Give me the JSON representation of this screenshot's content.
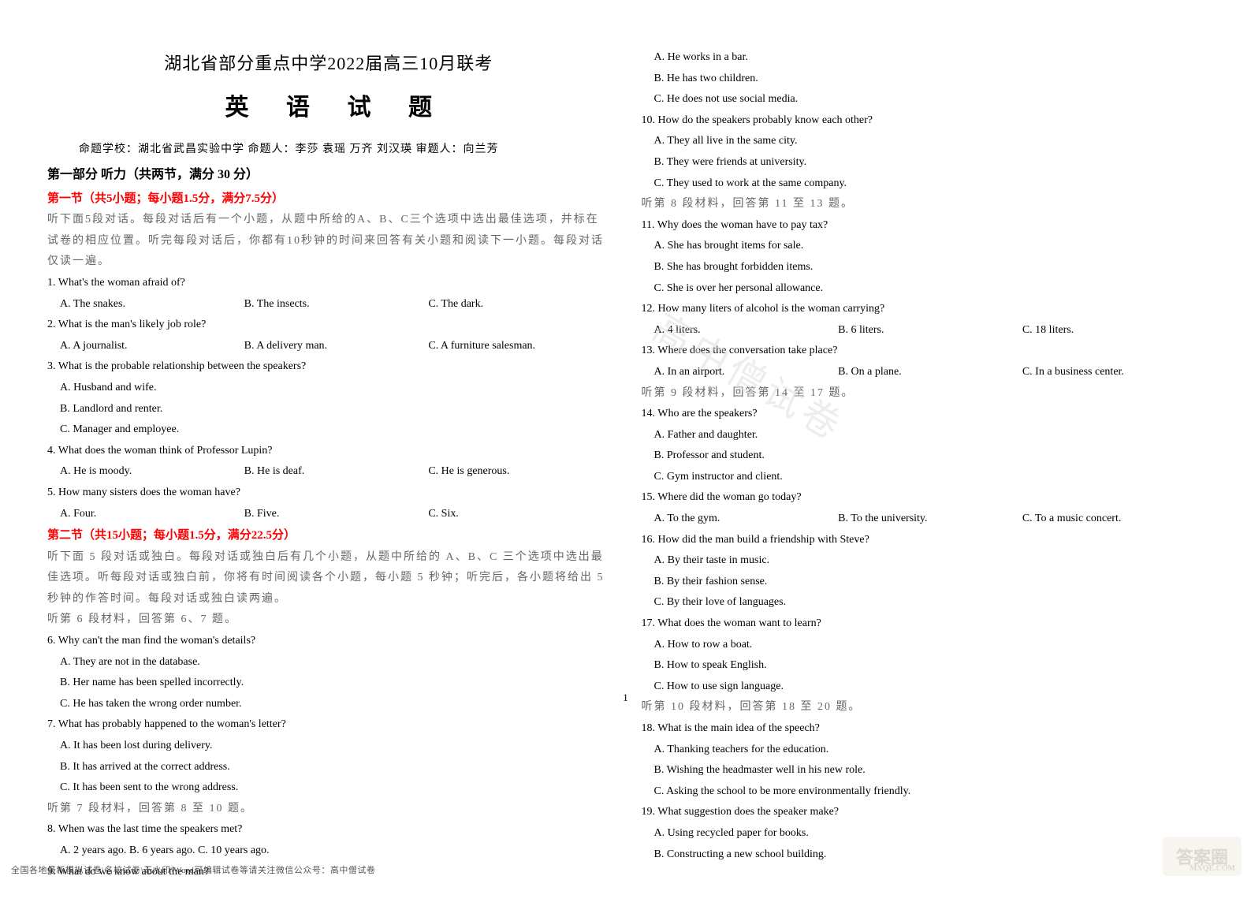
{
  "header": {
    "exam_title": "湖北省部分重点中学2022届高三10月联考",
    "subject_title": "英 语 试 题",
    "credits": "命题学校：湖北省武昌实验中学  命题人：李莎  袁瑶  万齐  刘汉瑛  审题人：向兰芳"
  },
  "part1": {
    "title": "第一部分  听力（共两节，满分 30 分）",
    "section1_title": "第一节（共5小题；每小题1.5分，满分7.5分）",
    "section1_instr": "听下面5段对话。每段对话后有一个小题，从题中所给的A、B、C三个选项中选出最佳选项，并标在试卷的相应位置。听完每段对话后，你都有10秒钟的时间来回答有关小题和阅读下一小题。每段对话仅读一遍。",
    "q1": "1. What's the woman afraid of?",
    "q1a": "A. The snakes.",
    "q1b": "B. The insects.",
    "q1c": "C. The dark.",
    "q2": "2. What is the man's likely job role?",
    "q2a": "A. A journalist.",
    "q2b": "B. A delivery man.",
    "q2c": "C. A furniture salesman.",
    "q3": "3. What is the probable relationship between the speakers?",
    "q3a": "A. Husband and wife.",
    "q3b": "B. Landlord and renter.",
    "q3c": "C. Manager and employee.",
    "q4": "4. What does the woman think of Professor Lupin?",
    "q4a": "A. He is moody.",
    "q4b": "B. He is deaf.",
    "q4c": "C. He is generous.",
    "q5": "5. How many sisters does the woman have?",
    "q5a": "A. Four.",
    "q5b": "B. Five.",
    "q5c": "C. Six.",
    "section2_title": "第二节（共15小题；每小题1.5分，满分22.5分）",
    "section2_instr": "听下面 5 段对话或独白。每段对话或独白后有几个小题，从题中所给的 A、B、C 三个选项中选出最佳选项。听每段对话或独白前，你将有时间阅读各个小题，每小题 5 秒钟；听完后，各小题将给出 5 秒钟的作答时间。每段对话或独白读两遍。",
    "mat6": "听第 6 段材料，回答第 6、7 题。",
    "q6": "6. Why can't the man find the woman's details?",
    "q6a": "A. They are not in the database.",
    "q6b": "B. Her name has been spelled incorrectly.",
    "q6c": "C. He has taken the wrong order number.",
    "q7": "7. What has probably happened to the woman's letter?",
    "q7a": "A. It has been lost during delivery.",
    "q7b": "B. It has arrived at the correct address.",
    "q7c": "C. It has been sent to the wrong address.",
    "mat7": "听第 7 段材料，回答第 8 至 10 题。",
    "q8": "8. When was the last time the speakers met?",
    "q8a": "A. 2 years ago.    B. 6 years ago.    C. 10 years ago.",
    "q9": "9. What do we know about the man?",
    "q9a": "A. He works in a bar.",
    "q9b": "B. He has two children.",
    "q9c": "C. He does not use social media.",
    "q10": "10. How do the speakers probably know each other?",
    "q10a": "A. They all live in the same city.",
    "q10b": "B. They were friends at university.",
    "q10c": "C. They used to work at the same company.",
    "mat8": "听第 8 段材料，回答第 11 至 13 题。",
    "q11": "11. Why does the woman have to pay tax?",
    "q11a": "A. She has brought items for sale.",
    "q11b": "B. She has brought forbidden items.",
    "q11c": "C. She is over her personal allowance.",
    "q12": "12. How many liters of alcohol is the woman carrying?",
    "q12a": "A. 4 liters.",
    "q12b": "B. 6 liters.",
    "q12c": "C. 18 liters.",
    "q13": "13. Where does the conversation take place?",
    "q13a": "A. In an airport.",
    "q13b": "B. On a plane.",
    "q13c": "C. In a business center.",
    "mat9": "听第 9 段材料，回答第 14 至 17 题。",
    "q14": "14. Who are the speakers?",
    "q14a": "A. Father and daughter.",
    "q14b": "B. Professor and student.",
    "q14c": "C. Gym instructor and client.",
    "q15": "15. Where did the woman go today?",
    "q15a": "A. To the gym.",
    "q15b": "B. To the university.",
    "q15c": "C. To a music concert.",
    "q16": "16. How did the man build a friendship with Steve?",
    "q16a": "A. By their taste in music.",
    "q16b": "B. By their fashion sense.",
    "q16c": "C. By their love of languages.",
    "q17": "17. What does the woman want to learn?",
    "q17a": "A. How to row a boat.",
    "q17b": "B. How to speak English.",
    "q17c": "C. How to use sign language.",
    "mat10": "听第 10 段材料，回答第 18 至 20 题。",
    "q18": "18. What is the main idea of the speech?",
    "q18a": "A. Thanking teachers for the education.",
    "q18b": "B. Wishing the headmaster well in his new role.",
    "q18c": "C. Asking the school to be more environmentally friendly.",
    "q19": "19. What suggestion does the speaker make?",
    "q19a": "A. Using recycled paper for books.",
    "q19b": "B. Constructing a new school building."
  },
  "page_number": "1",
  "footer": "全国各地最新模拟试卷\\名校试卷\\无水印\\Word可编辑试卷等请关注微信公众号：高中僧试卷",
  "watermark_center": "高中僧试卷",
  "watermark_br": "答案圈",
  "watermark_br_sub": "MXQE.COM"
}
